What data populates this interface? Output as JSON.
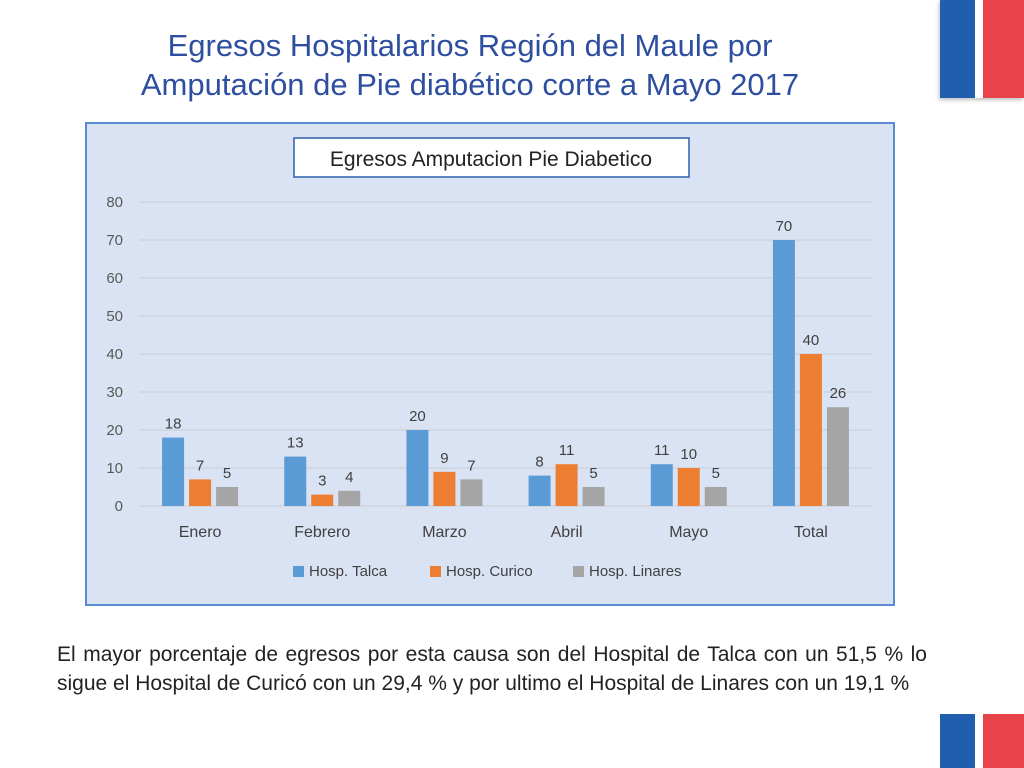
{
  "slide": {
    "title_line1": "Egresos Hospitalarios Región del Maule por",
    "title_line2": "Amputación de Pie diabético corte a Mayo 2017",
    "body_text": "El mayor porcentaje de egresos por esta causa son del Hospital de Talca con un 51,5 % lo sigue el Hospital de Curicó con un 29,4 %  y por ultimo el Hospital de Linares con un 19,1 %"
  },
  "colors": {
    "flag_blue": "#1f5fad",
    "flag_red": "#e9434a",
    "series": [
      "#5b9bd5",
      "#ed7d31",
      "#a5a5a5"
    ]
  },
  "chart_data": {
    "type": "bar",
    "title": "Egresos  Amputacion Pie Diabetico",
    "categories": [
      "Enero",
      "Febrero",
      "Marzo",
      "Abril",
      "Mayo",
      "Total"
    ],
    "series": [
      {
        "name": "Hosp. Talca",
        "values": [
          18,
          13,
          20,
          8,
          11,
          70
        ]
      },
      {
        "name": "Hosp. Curico",
        "values": [
          7,
          3,
          9,
          11,
          10,
          40
        ]
      },
      {
        "name": "Hosp. Linares",
        "values": [
          5,
          4,
          7,
          5,
          5,
          26
        ]
      }
    ],
    "ylim": [
      0,
      80
    ],
    "yticks": [
      0,
      10,
      20,
      30,
      40,
      50,
      60,
      70,
      80
    ],
    "xlabel": "",
    "ylabel": "",
    "grid": true,
    "legend": "bottom"
  }
}
